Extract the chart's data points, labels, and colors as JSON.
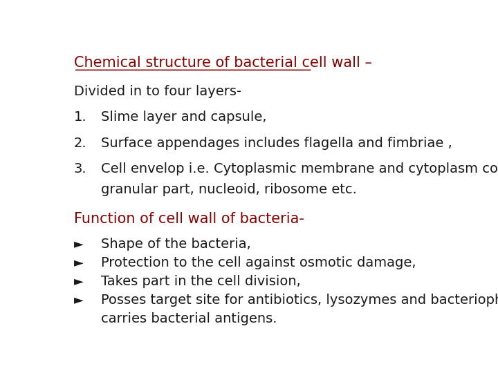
{
  "bg_color": "#ffffff",
  "title_text": "Chemical structure of bacterial cell wall –",
  "title_color": "#8B0000",
  "title_fontsize": 15,
  "body_fontsize": 14,
  "body_color": "#1a1a1a",
  "red_color": "#8B0000",
  "intro_line": "Divided in to four layers-",
  "numbered_items": [
    "Slime layer and capsule,",
    "Surface appendages includes flagella and fimbriae ,",
    "Cell envelop i.e. Cytoplasmic membrane and cytoplasm containing",
    "granular part, nucleoid, ribosome etc."
  ],
  "function_heading": "Function of cell wall of bacteria-",
  "bullet_items": [
    "Shape of the bacteria,",
    "Protection to the cell against osmotic damage,",
    "Takes part in the cell division,",
    "Posses target site for antibiotics, lysozymes and bacteriophages,",
    "carries bacterial antigens."
  ]
}
